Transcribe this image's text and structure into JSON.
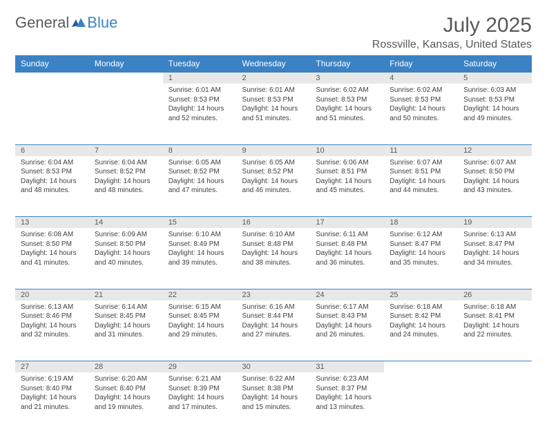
{
  "logo": {
    "general": "General",
    "blue": "Blue"
  },
  "title": "July 2025",
  "location": "Rossville, Kansas, United States",
  "colors": {
    "header_bg": "#3b82c4",
    "header_fg": "#ffffff",
    "daynum_bg": "#e8e8e8",
    "text": "#595959",
    "border": "#3b82c4"
  },
  "daysOfWeek": [
    "Sunday",
    "Monday",
    "Tuesday",
    "Wednesday",
    "Thursday",
    "Friday",
    "Saturday"
  ],
  "weeks": [
    [
      null,
      null,
      {
        "n": "1",
        "sr": "6:01 AM",
        "ss": "8:53 PM",
        "dl": "14 hours and 52 minutes."
      },
      {
        "n": "2",
        "sr": "6:01 AM",
        "ss": "8:53 PM",
        "dl": "14 hours and 51 minutes."
      },
      {
        "n": "3",
        "sr": "6:02 AM",
        "ss": "8:53 PM",
        "dl": "14 hours and 51 minutes."
      },
      {
        "n": "4",
        "sr": "6:02 AM",
        "ss": "8:53 PM",
        "dl": "14 hours and 50 minutes."
      },
      {
        "n": "5",
        "sr": "6:03 AM",
        "ss": "8:53 PM",
        "dl": "14 hours and 49 minutes."
      }
    ],
    [
      {
        "n": "6",
        "sr": "6:04 AM",
        "ss": "8:53 PM",
        "dl": "14 hours and 48 minutes."
      },
      {
        "n": "7",
        "sr": "6:04 AM",
        "ss": "8:52 PM",
        "dl": "14 hours and 48 minutes."
      },
      {
        "n": "8",
        "sr": "6:05 AM",
        "ss": "8:52 PM",
        "dl": "14 hours and 47 minutes."
      },
      {
        "n": "9",
        "sr": "6:05 AM",
        "ss": "8:52 PM",
        "dl": "14 hours and 46 minutes."
      },
      {
        "n": "10",
        "sr": "6:06 AM",
        "ss": "8:51 PM",
        "dl": "14 hours and 45 minutes."
      },
      {
        "n": "11",
        "sr": "6:07 AM",
        "ss": "8:51 PM",
        "dl": "14 hours and 44 minutes."
      },
      {
        "n": "12",
        "sr": "6:07 AM",
        "ss": "8:50 PM",
        "dl": "14 hours and 43 minutes."
      }
    ],
    [
      {
        "n": "13",
        "sr": "6:08 AM",
        "ss": "8:50 PM",
        "dl": "14 hours and 41 minutes."
      },
      {
        "n": "14",
        "sr": "6:09 AM",
        "ss": "8:50 PM",
        "dl": "14 hours and 40 minutes."
      },
      {
        "n": "15",
        "sr": "6:10 AM",
        "ss": "8:49 PM",
        "dl": "14 hours and 39 minutes."
      },
      {
        "n": "16",
        "sr": "6:10 AM",
        "ss": "8:48 PM",
        "dl": "14 hours and 38 minutes."
      },
      {
        "n": "17",
        "sr": "6:11 AM",
        "ss": "8:48 PM",
        "dl": "14 hours and 36 minutes."
      },
      {
        "n": "18",
        "sr": "6:12 AM",
        "ss": "8:47 PM",
        "dl": "14 hours and 35 minutes."
      },
      {
        "n": "19",
        "sr": "6:13 AM",
        "ss": "8:47 PM",
        "dl": "14 hours and 34 minutes."
      }
    ],
    [
      {
        "n": "20",
        "sr": "6:13 AM",
        "ss": "8:46 PM",
        "dl": "14 hours and 32 minutes."
      },
      {
        "n": "21",
        "sr": "6:14 AM",
        "ss": "8:45 PM",
        "dl": "14 hours and 31 minutes."
      },
      {
        "n": "22",
        "sr": "6:15 AM",
        "ss": "8:45 PM",
        "dl": "14 hours and 29 minutes."
      },
      {
        "n": "23",
        "sr": "6:16 AM",
        "ss": "8:44 PM",
        "dl": "14 hours and 27 minutes."
      },
      {
        "n": "24",
        "sr": "6:17 AM",
        "ss": "8:43 PM",
        "dl": "14 hours and 26 minutes."
      },
      {
        "n": "25",
        "sr": "6:18 AM",
        "ss": "8:42 PM",
        "dl": "14 hours and 24 minutes."
      },
      {
        "n": "26",
        "sr": "6:18 AM",
        "ss": "8:41 PM",
        "dl": "14 hours and 22 minutes."
      }
    ],
    [
      {
        "n": "27",
        "sr": "6:19 AM",
        "ss": "8:40 PM",
        "dl": "14 hours and 21 minutes."
      },
      {
        "n": "28",
        "sr": "6:20 AM",
        "ss": "8:40 PM",
        "dl": "14 hours and 19 minutes."
      },
      {
        "n": "29",
        "sr": "6:21 AM",
        "ss": "8:39 PM",
        "dl": "14 hours and 17 minutes."
      },
      {
        "n": "30",
        "sr": "6:22 AM",
        "ss": "8:38 PM",
        "dl": "14 hours and 15 minutes."
      },
      {
        "n": "31",
        "sr": "6:23 AM",
        "ss": "8:37 PM",
        "dl": "14 hours and 13 minutes."
      },
      null,
      null
    ]
  ],
  "labels": {
    "sunrise": "Sunrise: ",
    "sunset": "Sunset: ",
    "daylight": "Daylight: "
  }
}
